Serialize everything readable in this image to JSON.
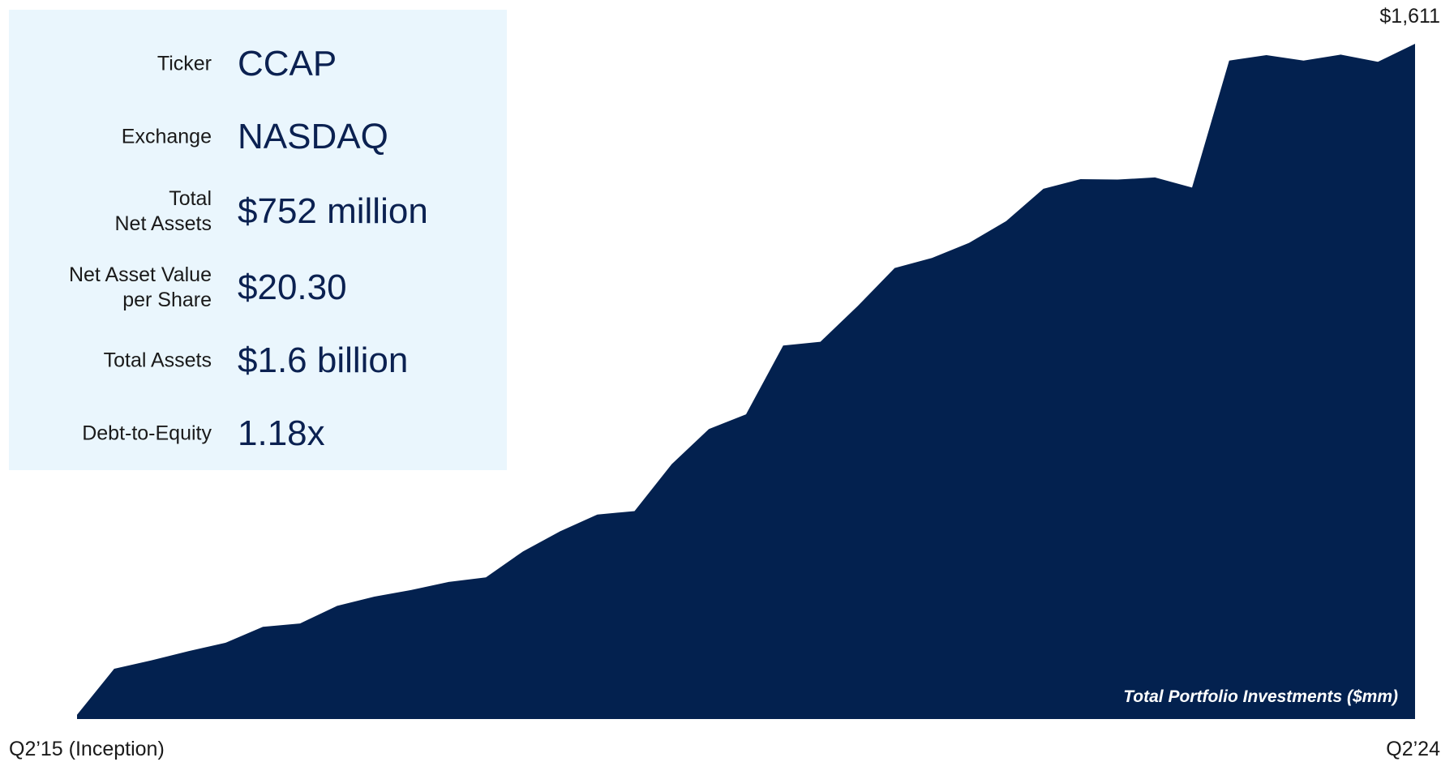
{
  "colors": {
    "area_fill": "#03214f",
    "panel_background": "#eaf6fd",
    "value_text": "#0b2151"
  },
  "metrics": [
    {
      "label": "Ticker",
      "value": "CCAP"
    },
    {
      "label": "Exchange",
      "value": "NASDAQ"
    },
    {
      "label": "Total\nNet Assets",
      "value": "$752 million"
    },
    {
      "label": "Net Asset Value\nper Share",
      "value": "$20.30"
    },
    {
      "label": "Total Assets",
      "value": "$1.6 billion"
    },
    {
      "label": "Debt-to-Equity",
      "value": "1.18x"
    }
  ],
  "chart_data": {
    "type": "area",
    "title": "",
    "series_label": "Total Portfolio Investments ($mm)",
    "x_start_label": "Q2’15 (Inception)",
    "x_end_label": "Q2’24",
    "end_value_label": "$1,611",
    "ylim": [
      0,
      1611
    ],
    "grid": false,
    "legend": "none",
    "series": [
      {
        "name": "Total Portfolio Investments ($mm)",
        "values": [
          10,
          120,
          140,
          162,
          182,
          220,
          228,
          270,
          292,
          308,
          327,
          338,
          400,
          448,
          488,
          496,
          608,
          692,
          727,
          891,
          900,
          985,
          1076,
          1100,
          1136,
          1188,
          1265,
          1288,
          1287,
          1292,
          1268,
          1571,
          1584,
          1571,
          1585,
          1568,
          1611
        ]
      }
    ]
  }
}
